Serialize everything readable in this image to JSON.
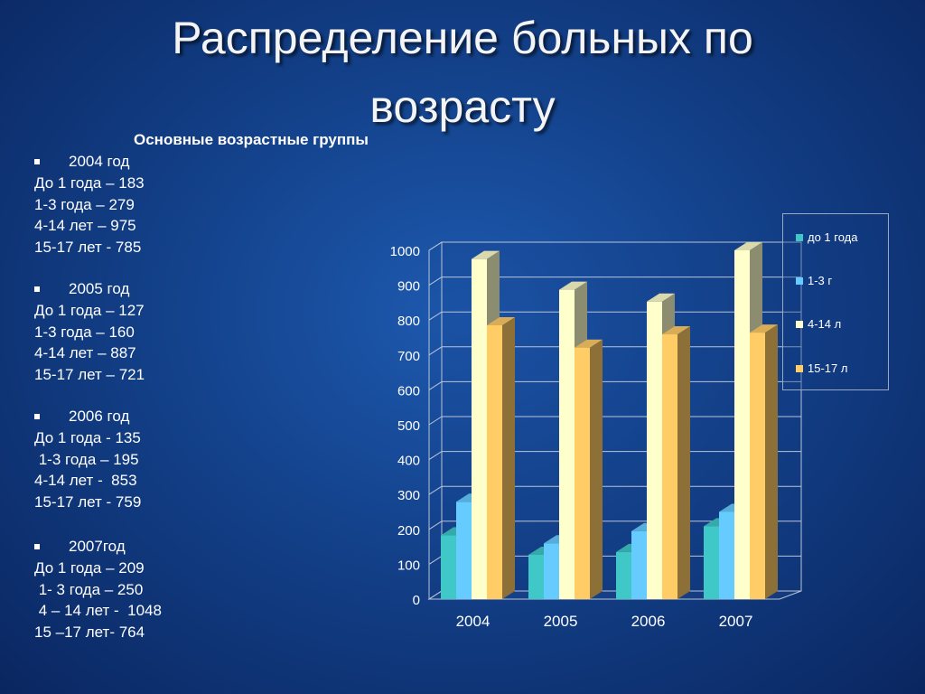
{
  "slide": {
    "title_line1": "Распределение больных по",
    "title_line2": "возрасту",
    "subtitle": "Основные возрастные группы"
  },
  "groups": [
    {
      "year": "2004 год",
      "lines": [
        "До 1 года – 183",
        "1-3 года – 279",
        "4-14 лет – 975",
        "15-17 лет - 785"
      ]
    },
    {
      "year": "2005 год",
      "lines": [
        "До 1 года – 127",
        "1-3 года – 160",
        "4-14 лет – 887",
        "15-17 лет – 721"
      ]
    },
    {
      "year": "2006 год",
      "lines": [
        "До 1 года - 135",
        " 1-3 года – 195",
        "4-14 лет -  853",
        "15-17 лет - 759"
      ]
    },
    {
      "year": "2007год",
      "lines": [
        "До 1 года – 209",
        " 1- 3 года – 250",
        " 4 – 14 лет -  1048",
        "15 –17 лет- 764"
      ]
    }
  ],
  "chart_data": {
    "type": "bar",
    "categories": [
      "2004",
      "2005",
      "2006",
      "2007"
    ],
    "series": [
      {
        "name": "до 1 года",
        "values": [
          183,
          127,
          135,
          209
        ],
        "color": "#40c8c8"
      },
      {
        "name": "1-3 г",
        "values": [
          279,
          160,
          195,
          250
        ],
        "color": "#66ccff"
      },
      {
        "name": "4-14 л",
        "values": [
          975,
          887,
          853,
          1048
        ],
        "color": "#ffffcc"
      },
      {
        "name": "15-17 л",
        "values": [
          785,
          721,
          759,
          764
        ],
        "color": "#ffcc66"
      }
    ],
    "ylim": [
      0,
      1000
    ],
    "yticks": [
      0,
      100,
      200,
      300,
      400,
      500,
      600,
      700,
      800,
      900,
      1000
    ],
    "xlabel": "",
    "ylabel": "",
    "title": "",
    "legend": "right",
    "grid": true,
    "style": "3d-clustered"
  }
}
